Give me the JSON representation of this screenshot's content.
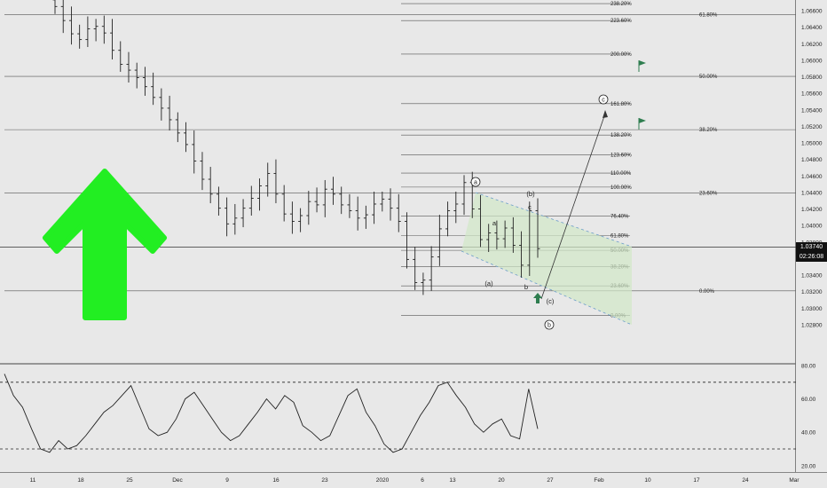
{
  "colors": {
    "background": "#e8e8e8",
    "bars": "#222222",
    "fib_line": "#555555",
    "arrow_green": "#22ee22",
    "channel_fill": "#d2e8c8",
    "channel_edge": "#6b9cc9",
    "flag_green": "#2e7d4f",
    "rsi_line": "#222222"
  },
  "price_axis": {
    "labels": [
      "1.06600",
      "1.06400",
      "1.06200",
      "1.06000",
      "1.05800",
      "1.05600",
      "1.05400",
      "1.05200",
      "1.05000",
      "1.04800",
      "1.04600",
      "1.04400",
      "1.04200",
      "1.04000",
      "1.03800",
      "1.03400",
      "1.03200",
      "1.03000",
      "1.02800"
    ],
    "values": [
      1.066,
      1.064,
      1.062,
      1.06,
      1.058,
      1.056,
      1.054,
      1.052,
      1.05,
      1.048,
      1.046,
      1.044,
      1.042,
      1.04,
      1.038,
      1.034,
      1.032,
      1.03,
      1.028
    ]
  },
  "current_price": {
    "value": "1.03740",
    "countdown": "02:26:08"
  },
  "rsi_axis": {
    "labels": [
      "80.00",
      "60.00",
      "40.00",
      "20.00"
    ],
    "values": [
      80,
      60,
      40,
      20
    ],
    "upper_band": 70,
    "lower_band": 30
  },
  "time_axis": {
    "labels": [
      "11",
      "18",
      "25",
      "Dec",
      "9",
      "16",
      "23",
      "2020",
      "6",
      "13",
      "20",
      "27",
      "Feb",
      "10",
      "17",
      "24",
      "Mar"
    ]
  },
  "fib_big": [
    {
      "label": "61.80%",
      "price": 1.0655
    },
    {
      "label": "50.00%",
      "price": 1.05805
    },
    {
      "label": "38.20%",
      "price": 1.0516
    },
    {
      "label": "23.60%",
      "price": 1.04395
    },
    {
      "label": "0.00%",
      "price": 1.0321
    }
  ],
  "fib_ext": [
    {
      "label": "238.20%",
      "price": 1.06685
    },
    {
      "label": "223.60%",
      "price": 1.0648
    },
    {
      "label": "200.00%",
      "price": 1.06075
    },
    {
      "label": "161.80%",
      "price": 1.05475
    },
    {
      "label": "138.20%",
      "price": 1.05095
    },
    {
      "label": "123.60%",
      "price": 1.04855
    },
    {
      "label": "110.00%",
      "price": 1.04635
    },
    {
      "label": "100.00%",
      "price": 1.04465
    },
    {
      "label": "76.40%",
      "price": 1.04115
    },
    {
      "label": "61.80%",
      "price": 1.0388
    },
    {
      "label": "50.00%",
      "price": 1.037
    },
    {
      "label": "38.20%",
      "price": 1.03505
    },
    {
      "label": "23.60%",
      "price": 1.0327
    },
    {
      "label": "0.00%",
      "price": 1.0291
    }
  ],
  "wave_labels": {
    "a_circ": "a",
    "c_circ": "c",
    "b_circ": "b",
    "b_paren": "(b)",
    "a_paren": "(a)",
    "c_paren": "(c)",
    "a_small": "a",
    "b_small": "b",
    "c_small": "c"
  },
  "chart_data": {
    "type": "candlestick",
    "series": [
      {
        "name": "price",
        "x_start": "Nov 6",
        "x_end": "Jan 24",
        "close": [
          1.0665,
          1.0648,
          1.0632,
          1.0625,
          1.0638,
          1.0641,
          1.0633,
          1.0612,
          1.0595,
          1.0588,
          1.0579,
          1.0568,
          1.0555,
          1.0542,
          1.0528,
          1.0512,
          1.0498,
          1.0478,
          1.0456,
          1.0438,
          1.0421,
          1.0402,
          1.0409,
          1.0421,
          1.0433,
          1.0448,
          1.0463,
          1.0438,
          1.0414,
          1.0405,
          1.0412,
          1.0429,
          1.0425,
          1.0444,
          1.0438,
          1.0425,
          1.0418,
          1.0409,
          1.0413,
          1.0426,
          1.0432,
          1.0421,
          1.0405,
          1.0359,
          1.0331,
          1.0334,
          1.0362,
          1.0396,
          1.0418,
          1.0426,
          1.0452,
          1.042,
          1.0383,
          1.0391,
          1.0384,
          1.0397,
          1.0376,
          1.0352,
          1.0418,
          1.0372
        ]
      }
    ],
    "rsi": [
      75,
      62,
      55,
      42,
      30,
      28,
      35,
      30,
      32,
      38,
      45,
      52,
      56,
      62,
      68,
      55,
      42,
      38,
      40,
      48,
      60,
      64,
      56,
      48,
      40,
      35,
      38,
      45,
      52,
      60,
      54,
      62,
      58,
      44,
      40,
      35,
      38,
      50,
      62,
      66,
      52,
      44,
      33,
      28,
      30,
      40,
      50,
      58,
      68,
      70,
      62,
      55,
      45,
      40,
      45,
      48,
      38,
      36,
      66,
      42
    ]
  }
}
